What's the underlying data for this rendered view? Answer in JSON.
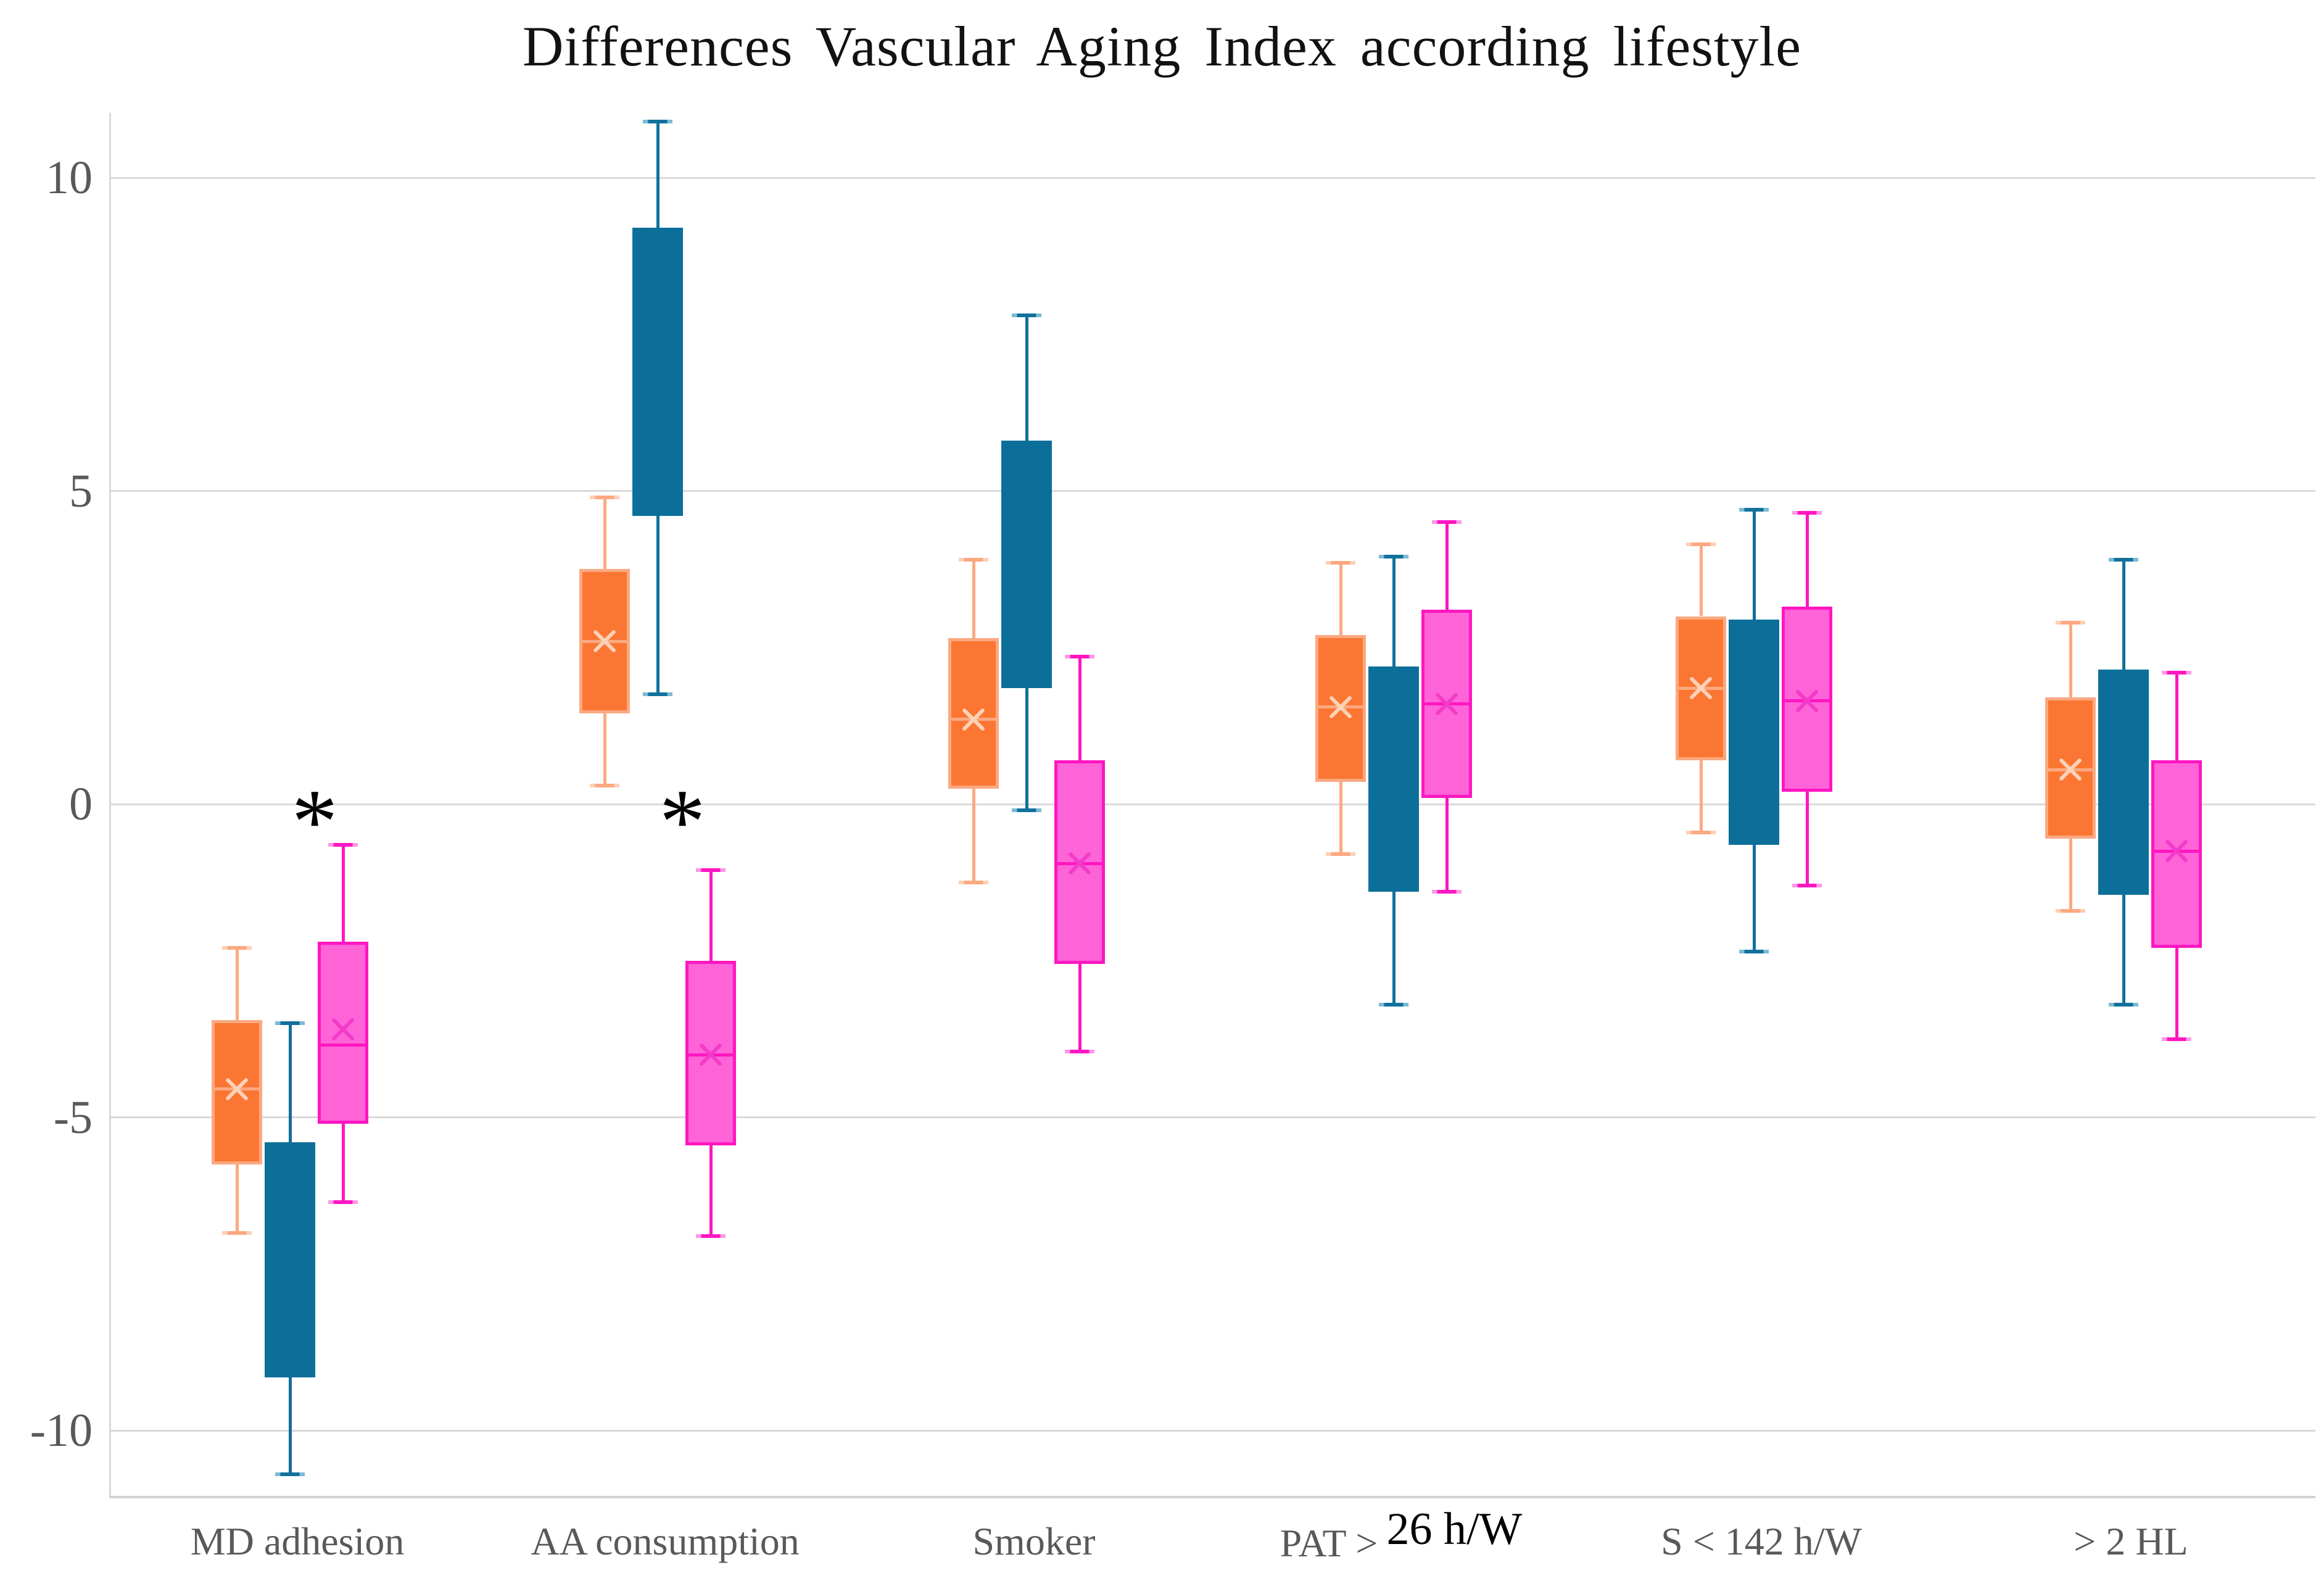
{
  "title": "Differences Vascular Aging Index according lifestyle",
  "chart_data": {
    "type": "boxplot",
    "title": "Differences Vascular Aging Index according lifestyle",
    "xlabel": "",
    "ylabel": "",
    "ylim": [
      -11.5,
      11
    ],
    "yticks": [
      10,
      5,
      0,
      -5,
      -10
    ],
    "grid": true,
    "legend": "none",
    "categories": [
      {
        "label": "MD adhesion"
      },
      {
        "label": "AA consumption"
      },
      {
        "label": "Smoker"
      },
      {
        "label": "PAT > 26 h/W",
        "parts": [
          {
            "text": "PAT >",
            "style": "normal"
          },
          {
            "text": "26 h/W",
            "style": "highlight"
          }
        ]
      },
      {
        "label": "S < 142 h/W"
      },
      {
        "label": "> 2 HL"
      }
    ],
    "series": [
      {
        "id": "orange",
        "fill": "#FB7633",
        "edge": "#FBA981",
        "whisker": "#FBA981",
        "cap_tip": "#FDD0B5",
        "mean_color": "#FDD2B6",
        "boxes": [
          {
            "low": -6.85,
            "q1": -5.75,
            "median": -4.55,
            "mean": -4.55,
            "q3": -3.45,
            "high": -2.3
          },
          {
            "low": 0.3,
            "q1": 1.45,
            "median": 2.6,
            "mean": 2.6,
            "q3": 3.75,
            "high": 4.9
          },
          {
            "low": -1.25,
            "q1": 0.25,
            "median": 1.35,
            "mean": 1.35,
            "q3": 2.65,
            "high": 3.9
          },
          {
            "low": -0.8,
            "q1": 0.35,
            "median": 1.55,
            "mean": 1.55,
            "q3": 2.7,
            "high": 3.85
          },
          {
            "low": -0.45,
            "q1": 0.7,
            "median": 1.85,
            "mean": 1.85,
            "q3": 3.0,
            "high": 4.15
          },
          {
            "low": -1.7,
            "q1": -0.55,
            "median": 0.55,
            "mean": 0.55,
            "q3": 1.7,
            "high": 2.9
          }
        ]
      },
      {
        "id": "blue",
        "fill": "#0B6F99",
        "edge": "#0B6F99",
        "whisker": "#11719C",
        "cap_tip": "#7ABBD2",
        "mean_color": null,
        "boxes": [
          {
            "low": -10.7,
            "q1": -9.15,
            "median": null,
            "mean": null,
            "q3": -5.4,
            "high": -3.5
          },
          {
            "low": 1.75,
            "q1": 4.6,
            "median": null,
            "mean": null,
            "q3": 9.2,
            "high": 10.9
          },
          {
            "low": -0.1,
            "q1": 1.85,
            "median": null,
            "mean": null,
            "q3": 5.8,
            "high": 7.8
          },
          {
            "low": -3.2,
            "q1": -1.4,
            "median": null,
            "mean": null,
            "q3": 2.2,
            "high": 3.95
          },
          {
            "low": -2.35,
            "q1": -0.65,
            "median": null,
            "mean": null,
            "q3": 2.95,
            "high": 4.7
          },
          {
            "low": -3.2,
            "q1": -1.45,
            "median": null,
            "mean": null,
            "q3": 2.15,
            "high": 3.9
          }
        ]
      },
      {
        "id": "magenta",
        "fill": "#FF63D8",
        "edge": "#FF16C1",
        "whisker": "#FF16C1",
        "cap_tip": "#FF9AE6",
        "mean_color": "#F23BC9",
        "boxes": [
          {
            "low": -6.35,
            "q1": -5.1,
            "median": -3.85,
            "mean": -3.6,
            "q3": -2.2,
            "high": -0.65
          },
          {
            "low": -6.9,
            "q1": -5.45,
            "median": -4.0,
            "mean": -4.0,
            "q3": -2.5,
            "high": -1.05
          },
          {
            "low": -3.95,
            "q1": -2.55,
            "median": -0.95,
            "mean": -0.95,
            "q3": 0.7,
            "high": 2.35
          },
          {
            "low": -1.4,
            "q1": 0.1,
            "median": 1.6,
            "mean": 1.6,
            "q3": 3.1,
            "high": 4.5
          },
          {
            "low": -1.3,
            "q1": 0.2,
            "median": 1.65,
            "mean": 1.65,
            "q3": 3.15,
            "high": 4.65
          },
          {
            "low": -3.75,
            "q1": -2.3,
            "median": -0.75,
            "mean": -0.75,
            "q3": 0.7,
            "high": 2.1
          }
        ]
      }
    ],
    "annotations": [
      {
        "text": "*",
        "category": "MD adhesion",
        "value": 0
      },
      {
        "text": "*",
        "category": "AA consumption",
        "value": 0
      }
    ]
  }
}
